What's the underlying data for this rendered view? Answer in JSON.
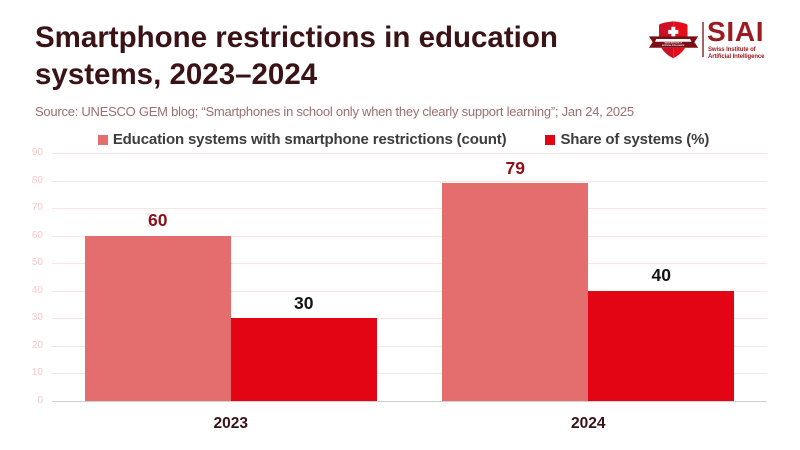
{
  "header": {
    "title": "Smartphone restrictions in education systems, 2023–2024",
    "source": "Source: UNESCO GEM blog; “Smartphones in school only when they clearly support learning”; Jan 24, 2025"
  },
  "logo": {
    "acronym": "SIAI",
    "subtitle_line1": "Swiss Institute of",
    "subtitle_line2": "Artificial Intelligence",
    "banner_line1": "SWISS INSTITUTE OF",
    "banner_line2": "ARTIFICIAL INTELLIGENCE"
  },
  "colors": {
    "title": "#3a1316",
    "source": "#9a6f6f",
    "legend_text": "#3d3d3d",
    "gridline": "#fbe4e4",
    "ytick": "#f8c9c9",
    "axis": "#cfcfcf",
    "xtick": "#3a1316",
    "logo_red": "#9c1b20"
  },
  "chart_data": {
    "type": "bar",
    "title": "Smartphone restrictions in education systems, 2023–2024",
    "categories": [
      "2023",
      "2024"
    ],
    "series": [
      {
        "key": "count",
        "name": "Education systems with smartphone restrictions (count)",
        "values": [
          60,
          79
        ],
        "color": "#e46e6e",
        "label_color": "#8e1118"
      },
      {
        "key": "share",
        "name": "Share of systems (%)",
        "values": [
          30,
          40
        ],
        "color": "#e30513",
        "label_color": "#141414"
      }
    ],
    "xlabel": "",
    "ylabel": "",
    "ylim": [
      0,
      90
    ],
    "ytick_step": 10,
    "grid": true,
    "legend_position": "top",
    "bar_width_frac": 0.2042
  }
}
